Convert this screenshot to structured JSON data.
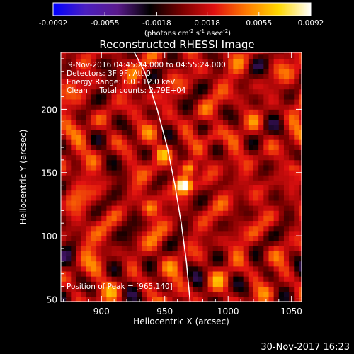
{
  "chart_data": {
    "type": "heatmap",
    "title": "Reconstructed RHESSI Image",
    "xlabel": "Heliocentric X (arcsec)",
    "ylabel": "Heliocentric Y (arcsec)",
    "xlim": [
      868,
      1058
    ],
    "ylim": [
      48,
      245
    ],
    "x_ticks": [
      900,
      950,
      1000,
      1050
    ],
    "y_ticks": [
      50,
      100,
      150,
      200
    ],
    "colorbar": {
      "range": [
        -0.0092,
        0.0092
      ],
      "tick_values": [
        -0.0092,
        -0.0055,
        -0.0018,
        0.0018,
        0.0055,
        0.0092
      ],
      "tick_labels": [
        "-0.0092",
        "-0.0055",
        "-0.0018",
        "0.0018",
        "0.0055",
        "0.0092"
      ],
      "unit_label": "(photons cm",
      "unit_exp1": "-2",
      "unit_mid": " s",
      "unit_exp2": "-1",
      "unit_mid2": " asec",
      "unit_exp3": "-2",
      "unit_end": ")",
      "colors": [
        "#0000ff",
        "#4b1fbf",
        "#5a1a8c",
        "#000000",
        "#7a0000",
        "#e01010",
        "#ff7a00",
        "#ffd800",
        "#ffffff"
      ]
    },
    "info_lines": [
      "9-Nov-2016 04:45:24.000 to 04:55:24.000",
      "Detectors: 3F 9F, Att 0",
      "Energy Range: 6.0 - 12.0 keV",
      "Clean     Total counts: 2.79E+04"
    ],
    "peak_label": "Position of Peak = [965,140]",
    "peak": {
      "x": 965,
      "y": 140,
      "value": 0.0092
    },
    "secondary_sources": [
      {
        "x": 969,
        "y": 154,
        "value": 0.006
      },
      {
        "x": 948,
        "y": 165,
        "value": 0.003
      },
      {
        "x": 986,
        "y": 178,
        "value": 0.003
      },
      {
        "x": 938,
        "y": 122,
        "value": 0.0024
      },
      {
        "x": 1052,
        "y": 155,
        "value": 0.003
      }
    ],
    "limb_curve": [
      [
        970,
        48
      ],
      [
        967,
        80
      ],
      [
        963,
        110
      ],
      [
        958,
        140
      ],
      [
        952,
        170
      ],
      [
        944,
        200
      ],
      [
        934,
        230
      ],
      [
        926,
        245
      ]
    ],
    "timestamp": "30-Nov-2017 16:23"
  }
}
